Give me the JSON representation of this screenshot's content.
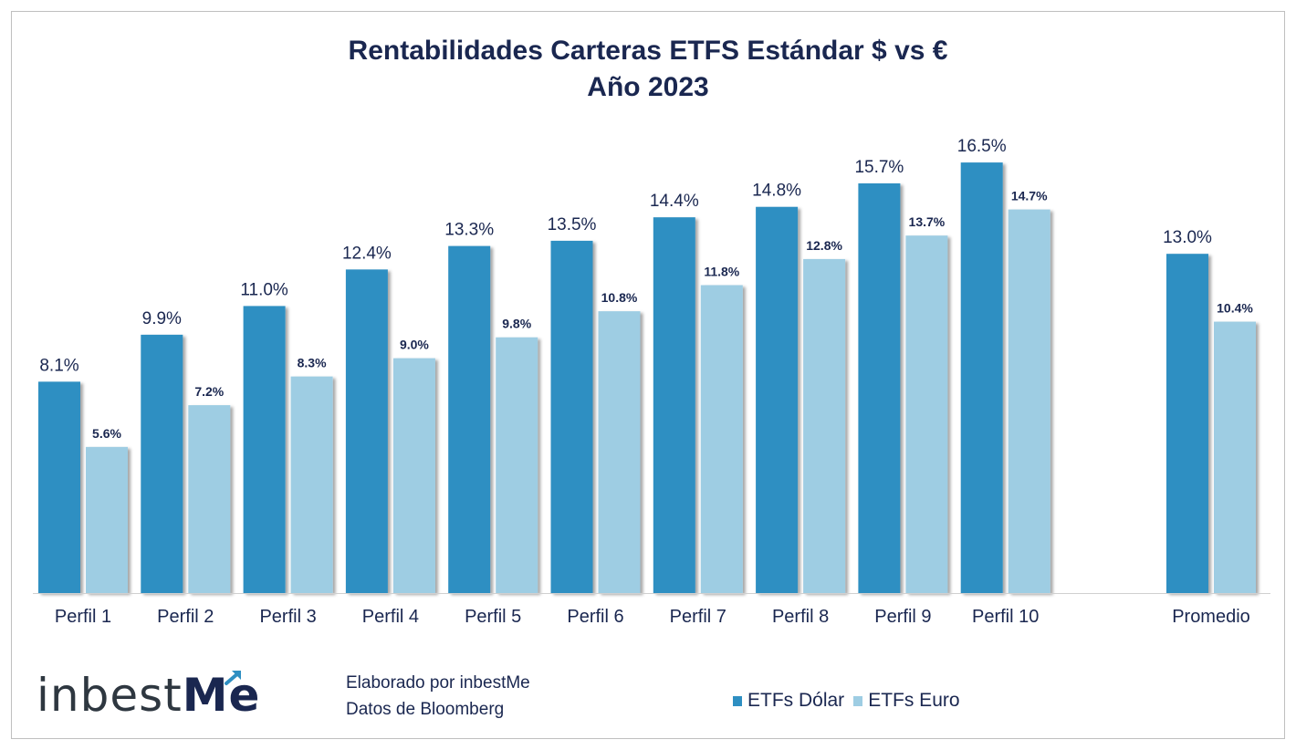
{
  "title_line1": "Rentabilidades Carteras ETFS Estándar $ vs €",
  "title_line2": "Año 2023",
  "credits": {
    "line1": "Elaborado por inbestMe",
    "line2": "Datos de Bloomberg"
  },
  "logo": {
    "text_main": "inbest",
    "text_accent": "Me",
    "icon": "arrow-up-right-icon"
  },
  "colors": {
    "dollar": "#2e8fc2",
    "euro": "#9ecde3",
    "text": "#1a2750"
  },
  "chart_data": {
    "type": "bar",
    "categories": [
      "Perfil 1",
      "Perfil 2",
      "Perfil 3",
      "Perfil 4",
      "Perfil 5",
      "Perfil 6",
      "Perfil 7",
      "Perfil 8",
      "Perfil 9",
      "Perfil 10",
      "Promedio"
    ],
    "series": [
      {
        "name": "ETFs Dólar",
        "values": [
          8.1,
          9.9,
          11.0,
          12.4,
          13.3,
          13.5,
          14.4,
          14.8,
          15.7,
          16.5,
          13.0
        ],
        "labels": [
          "8.1%",
          "9.9%",
          "11.0%",
          "12.4%",
          "13.3%",
          "13.5%",
          "14.4%",
          "14.8%",
          "15.7%",
          "16.5%",
          "13.0%"
        ]
      },
      {
        "name": "ETFs Euro",
        "values": [
          5.6,
          7.2,
          8.3,
          9.0,
          9.8,
          10.8,
          11.8,
          12.8,
          13.7,
          14.7,
          10.4
        ],
        "labels": [
          "5.6%",
          "7.2%",
          "8.3%",
          "9.0%",
          "9.8%",
          "10.8%",
          "11.8%",
          "12.8%",
          "13.7%",
          "14.7%",
          "10.4%"
        ]
      }
    ],
    "ylim": [
      0,
      20
    ],
    "grid": false,
    "legend": "bottom"
  }
}
